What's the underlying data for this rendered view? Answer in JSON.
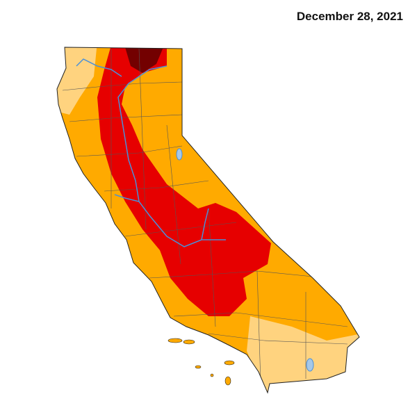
{
  "title": "December 28, 2021"
}
